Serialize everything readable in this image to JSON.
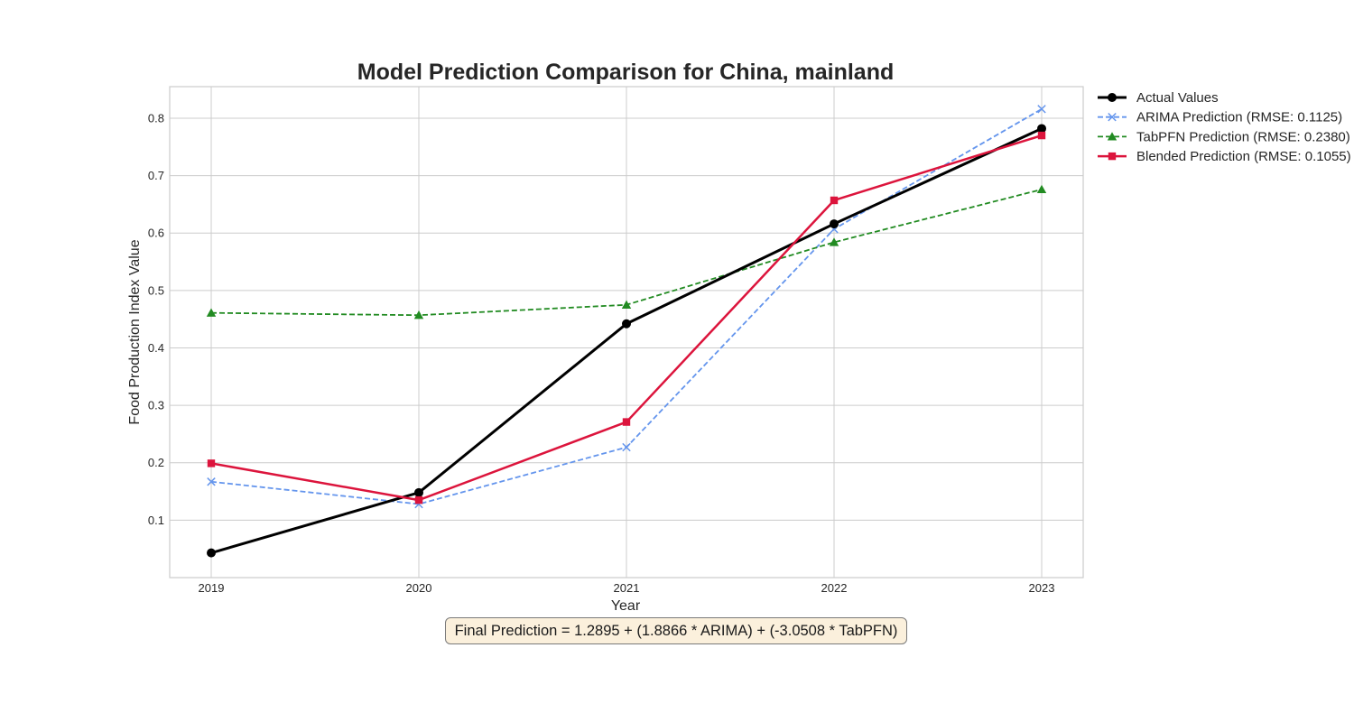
{
  "chart_data": {
    "type": "line",
    "title": "Model Prediction Comparison for China, mainland",
    "xlabel": "Year",
    "ylabel": "Food Production Index Value",
    "x": [
      2019,
      2020,
      2021,
      2022,
      2023
    ],
    "xticks": [
      "2019",
      "2020",
      "2021",
      "2022",
      "2023"
    ],
    "yticks": [
      "0.1",
      "0.2",
      "0.3",
      "0.4",
      "0.5",
      "0.6",
      "0.7",
      "0.8"
    ],
    "ylim": [
      -0.0,
      0.855
    ],
    "xlim": [
      2018.8,
      2023.2
    ],
    "grid": true,
    "legend_position": "outside-top-right",
    "series": [
      {
        "name": "Actual Values",
        "values": [
          0.043,
          0.148,
          0.442,
          0.616,
          0.782
        ],
        "color": "#000000",
        "linestyle": "solid",
        "marker": "circle"
      },
      {
        "name": "ARIMA Prediction (RMSE: 0.1125)",
        "values": [
          0.167,
          0.128,
          0.227,
          0.607,
          0.816
        ],
        "color": "#6495ED",
        "linestyle": "dashed",
        "marker": "x"
      },
      {
        "name": "TabPFN Prediction (RMSE: 0.2380)",
        "values": [
          0.461,
          0.457,
          0.475,
          0.584,
          0.676
        ],
        "color": "#228B22",
        "linestyle": "dashed",
        "marker": "triangle"
      },
      {
        "name": "Blended Prediction (RMSE: 0.1055)",
        "values": [
          0.199,
          0.135,
          0.271,
          0.657,
          0.77
        ],
        "color": "#DC143C",
        "linestyle": "solid",
        "marker": "square"
      }
    ],
    "annotation": "Final Prediction = 1.2895 + (1.8866 * ARIMA) + (-3.0508 * TabPFN)"
  }
}
